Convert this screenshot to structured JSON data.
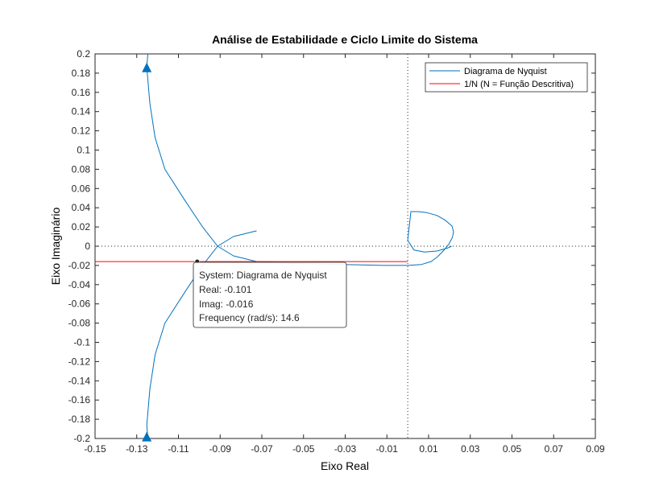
{
  "chart_data": {
    "type": "line",
    "title": "Análise de Estabilidade e Ciclo Limite do Sistema",
    "xlabel": "Eixo Real",
    "ylabel": "Eixo Imaginário",
    "xlim": [
      -0.15,
      0.09
    ],
    "ylim": [
      -0.2,
      0.2
    ],
    "xticks": [
      "-0.15",
      "-0.13",
      "-0.11",
      "-0.09",
      "-0.07",
      "-0.05",
      "-0.03",
      "-0.01",
      "0.01",
      "0.03",
      "0.05",
      "0.07",
      "0.09"
    ],
    "yticks": [
      "0.2",
      "0.18",
      "0.16",
      "0.14",
      "0.12",
      "0.1",
      "0.08",
      "0.06",
      "0.04",
      "0.02",
      "0",
      "-0.02",
      "-0.04",
      "-0.06",
      "-0.08",
      "-0.1",
      "-0.12",
      "-0.14",
      "-0.16",
      "-0.18",
      "-0.2"
    ],
    "grid": false,
    "legend_position": "top-right",
    "series": [
      {
        "name": "Diagrama de Nyquist",
        "color": "#0072BD",
        "x": [
          -0.1247,
          -0.1252,
          -0.1237,
          -0.1212,
          -0.1165,
          -0.1067,
          -0.0984,
          -0.0912,
          -0.0836,
          -0.0725,
          -0.0546,
          -0.0308,
          -0.0114,
          0.0001,
          0.0066,
          0.0112,
          0.0143,
          0.017,
          0.0197,
          0.0214,
          0.022,
          0.0212,
          0.018,
          0.014,
          0.009,
          0.005,
          0.0015,
          0.0,
          0.003,
          0.008,
          0.014,
          0.019,
          0.021
        ],
        "y": [
          0.2,
          0.186,
          0.148,
          0.113,
          0.08,
          0.047,
          0.02,
          0.0,
          -0.01,
          -0.016,
          -0.018,
          -0.019,
          -0.02,
          -0.02,
          -0.019,
          -0.016,
          -0.011,
          -0.005,
          0.002,
          0.009,
          0.015,
          0.021,
          0.027,
          0.032,
          0.035,
          0.036,
          0.036,
          0.006,
          -0.004,
          -0.006,
          -0.005,
          -0.002,
          0.0
        ]
      },
      {
        "name": "",
        "color": "#0072BD",
        "x": [
          -0.1247,
          -0.1252,
          -0.1237,
          -0.1212,
          -0.1165,
          -0.1067,
          -0.0984,
          -0.0912,
          -0.0836,
          -0.0725
        ],
        "y": [
          -0.2,
          -0.186,
          -0.148,
          -0.113,
          -0.08,
          -0.047,
          -0.02,
          0.0,
          0.01,
          0.016
        ]
      },
      {
        "name": "1/N (N = Função Descritiva)",
        "color": "#FF0000",
        "x": [
          -0.15,
          0.0
        ],
        "y": [
          -0.016,
          -0.016
        ]
      }
    ],
    "reference_lines": {
      "x0": 0,
      "y0": 0
    },
    "arrows": [
      {
        "x": -0.1252,
        "y": 0.186,
        "direction": "up"
      },
      {
        "x": -0.1252,
        "y": -0.198,
        "direction": "up"
      }
    ],
    "datatip": {
      "x": -0.101,
      "y": -0.016,
      "lines": [
        "System: Diagrama de Nyquist",
        "Real: -0.101",
        "Imag: -0.016",
        "Frequency (rad/s): 14.6"
      ]
    }
  }
}
